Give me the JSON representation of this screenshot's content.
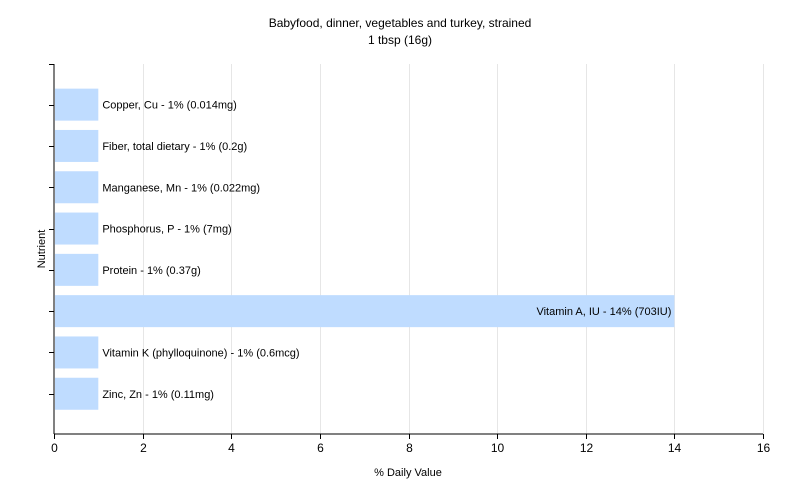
{
  "chart_data": {
    "type": "bar",
    "orientation": "horizontal",
    "title": "Babyfood, dinner, vegetables and turkey, strained",
    "subtitle": "1 tbsp (16g)",
    "xlabel": "% Daily Value",
    "ylabel": "Nutrient",
    "xlim": [
      0,
      16
    ],
    "xticks": [
      0,
      2,
      4,
      6,
      8,
      10,
      12,
      14,
      16
    ],
    "grid": true,
    "legend": "none",
    "bar_color": "#bfdcff",
    "categories": [
      "Copper, Cu",
      "Fiber, total dietary",
      "Manganese, Mn",
      "Phosphorus, P",
      "Protein",
      "Vitamin A, IU",
      "Vitamin K (phylloquinone)",
      "Zinc, Zn"
    ],
    "values": [
      1,
      1,
      1,
      1,
      1,
      14,
      1,
      1
    ],
    "labels": [
      "Copper, Cu - 1% (0.014mg)",
      "Fiber, total dietary - 1% (0.2g)",
      "Manganese, Mn - 1% (0.022mg)",
      "Phosphorus, P - 1% (7mg)",
      "Protein - 1% (0.37g)",
      "Vitamin A, IU - 14% (703IU)",
      "Vitamin K (phylloquinone) - 1% (0.6mcg)",
      "Zinc, Zn - 1% (0.11mg)"
    ]
  }
}
